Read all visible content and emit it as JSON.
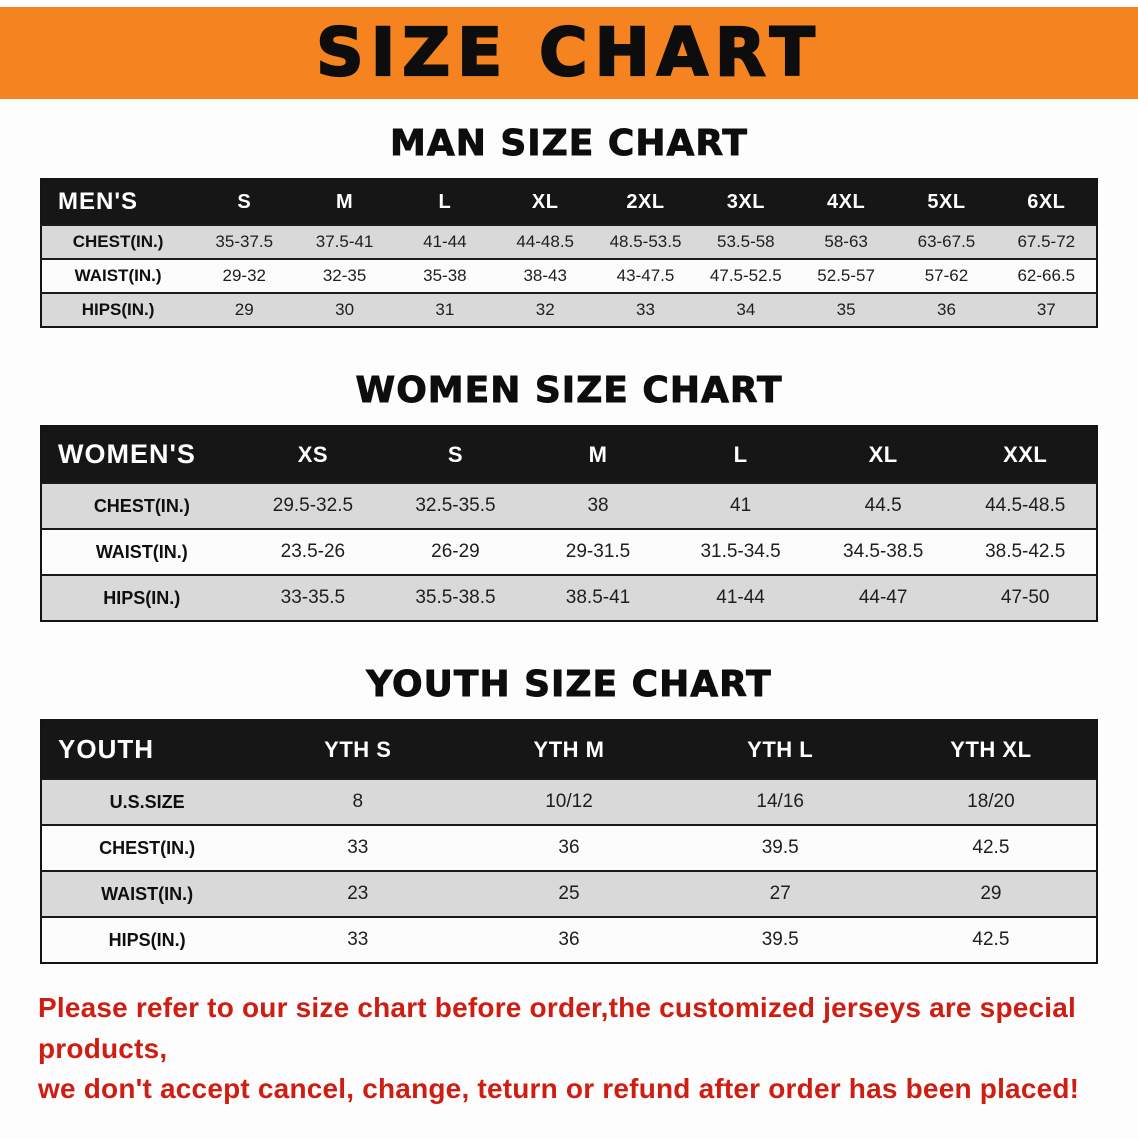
{
  "banner": {
    "title": "SIZE CHART"
  },
  "sections": [
    {
      "id": "men",
      "heading": "MAN SIZE CHART",
      "table": {
        "header": [
          "MEN'S",
          "S",
          "M",
          "L",
          "XL",
          "2XL",
          "3XL",
          "4XL",
          "5XL",
          "6XL"
        ],
        "rows": [
          [
            "CHEST(IN.)",
            "35-37.5",
            "37.5-41",
            "41-44",
            "44-48.5",
            "48.5-53.5",
            "53.5-58",
            "58-63",
            "63-67.5",
            "67.5-72"
          ],
          [
            "WAIST(IN.)",
            "29-32",
            "32-35",
            "35-38",
            "38-43",
            "43-47.5",
            "47.5-52.5",
            "52.5-57",
            "57-62",
            "62-66.5"
          ],
          [
            "HIPS(IN.)",
            "29",
            "30",
            "31",
            "32",
            "33",
            "34",
            "35",
            "36",
            "37"
          ]
        ]
      }
    },
    {
      "id": "women",
      "heading": "WOMEN SIZE CHART",
      "table": {
        "header": [
          "WOMEN'S",
          "XS",
          "S",
          "M",
          "L",
          "XL",
          "XXL"
        ],
        "rows": [
          [
            "CHEST(IN.)",
            "29.5-32.5",
            "32.5-35.5",
            "38",
            "41",
            "44.5",
            "44.5-48.5"
          ],
          [
            "WAIST(IN.)",
            "23.5-26",
            "26-29",
            "29-31.5",
            "31.5-34.5",
            "34.5-38.5",
            "38.5-42.5"
          ],
          [
            "HIPS(IN.)",
            "33-35.5",
            "35.5-38.5",
            "38.5-41",
            "41-44",
            "44-47",
            "47-50"
          ]
        ]
      }
    },
    {
      "id": "youth",
      "heading": "YOUTH SIZE CHART",
      "table": {
        "header": [
          "YOUTH",
          "YTH S",
          "YTH M",
          "YTH L",
          "YTH XL"
        ],
        "rows": [
          [
            "U.S.SIZE",
            "8",
            "10/12",
            "14/16",
            "18/20"
          ],
          [
            "CHEST(IN.)",
            "33",
            "36",
            "39.5",
            "42.5"
          ],
          [
            "WAIST(IN.)",
            "23",
            "25",
            "27",
            "29"
          ],
          [
            "HIPS(IN.)",
            "33",
            "36",
            "39.5",
            "42.5"
          ]
        ]
      }
    }
  ],
  "disclaimer": {
    "line1": "Please refer to our size chart before order,the customized jerseys are special products,",
    "line2": "we don't accept cancel, change, teturn or refund after order has been placed!"
  },
  "colors": {
    "banner_bg": "#f5831f",
    "table_header_bg": "#161616",
    "row_stripe": "#d9d9d9",
    "disclaimer_red": "#cf1d12"
  }
}
